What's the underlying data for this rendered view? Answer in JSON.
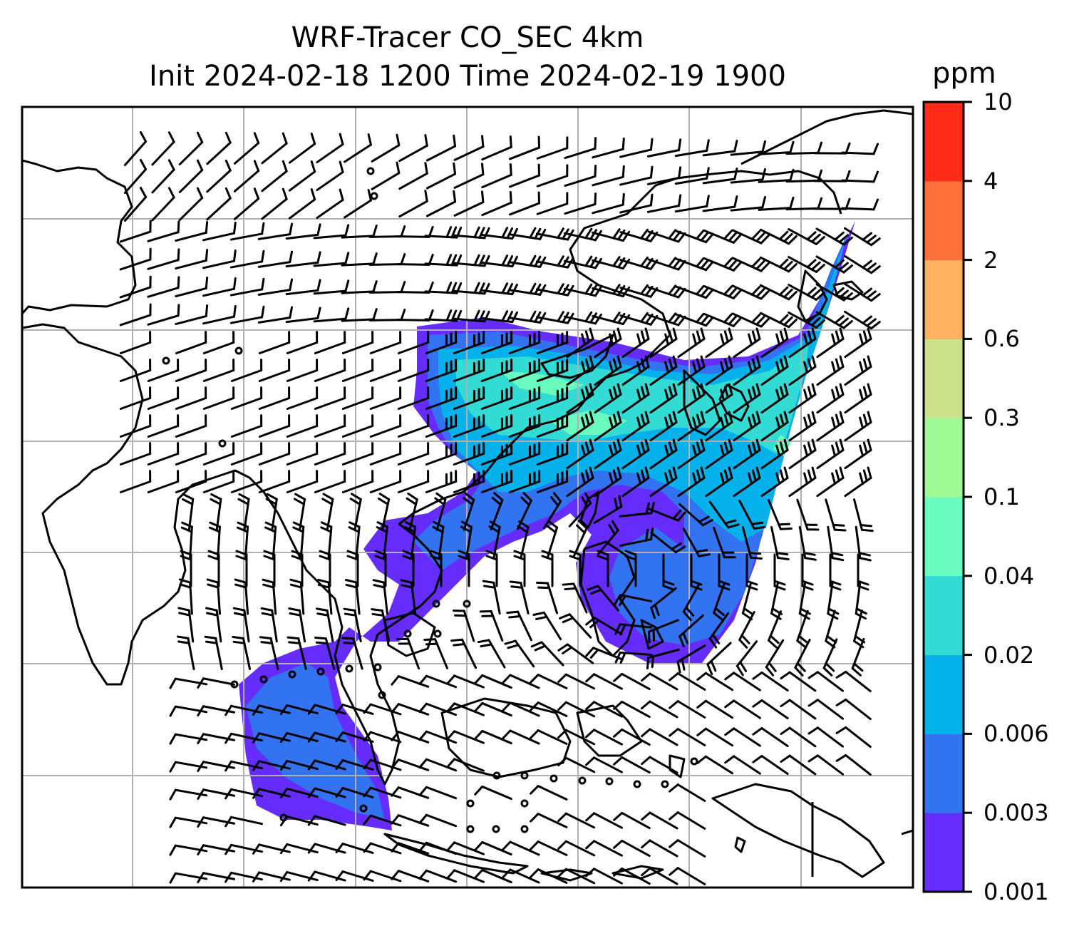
{
  "title": {
    "line1": "WRF-Tracer CO_SEC 4km",
    "line2": "Init 2024-02-18 1200 Time 2024-02-19 1900"
  },
  "colorbar": {
    "unit": "ppm",
    "levels": [
      "0.001",
      "0.003",
      "0.006",
      "0.02",
      "0.04",
      "0.1",
      "0.3",
      "0.6",
      "2",
      "4",
      "10"
    ],
    "colors": [
      "#652cfb",
      "#3273f2",
      "#05b1ea",
      "#32dcd4",
      "#69fcbe",
      "#9dfa94",
      "#cde08a",
      "#ffb060",
      "#ff713b",
      "#ff2a17"
    ]
  },
  "map": {
    "field": "CO_SEC tracer concentration",
    "overlay": "wind barbs",
    "gridlines": true,
    "coastlines": true
  }
}
